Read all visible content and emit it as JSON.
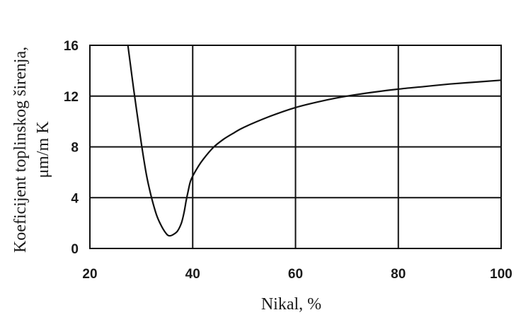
{
  "chart_data": {
    "type": "line",
    "title": "",
    "xlabel": "Nikal, %",
    "ylabel_lines": [
      "Koeficijent toplinskog širenja,",
      "μm/m K"
    ],
    "xlim": [
      20,
      100
    ],
    "ylim": [
      0,
      16
    ],
    "xticks": [
      20,
      40,
      60,
      80,
      100
    ],
    "yticks": [
      0,
      4,
      8,
      12,
      16
    ],
    "grid": true,
    "series": [
      {
        "x": [
          27.4,
          28.5,
          30,
          31,
          32,
          33,
          34,
          35,
          35.5,
          36,
          37,
          37.8,
          38.3,
          38.7,
          39,
          39.5,
          40,
          41,
          42,
          44,
          46,
          48,
          50,
          55,
          60,
          65,
          70,
          75,
          80,
          85,
          90,
          95,
          100
        ],
        "y": [
          16,
          12.6,
          8.3,
          5.8,
          4.0,
          2.6,
          1.7,
          1.1,
          1.0,
          1.05,
          1.35,
          2.0,
          2.8,
          3.7,
          4.3,
          5.2,
          5.7,
          6.4,
          7.0,
          7.95,
          8.6,
          9.1,
          9.55,
          10.4,
          11.1,
          11.6,
          12.0,
          12.3,
          12.55,
          12.75,
          12.95,
          13.1,
          13.25
        ]
      }
    ]
  }
}
